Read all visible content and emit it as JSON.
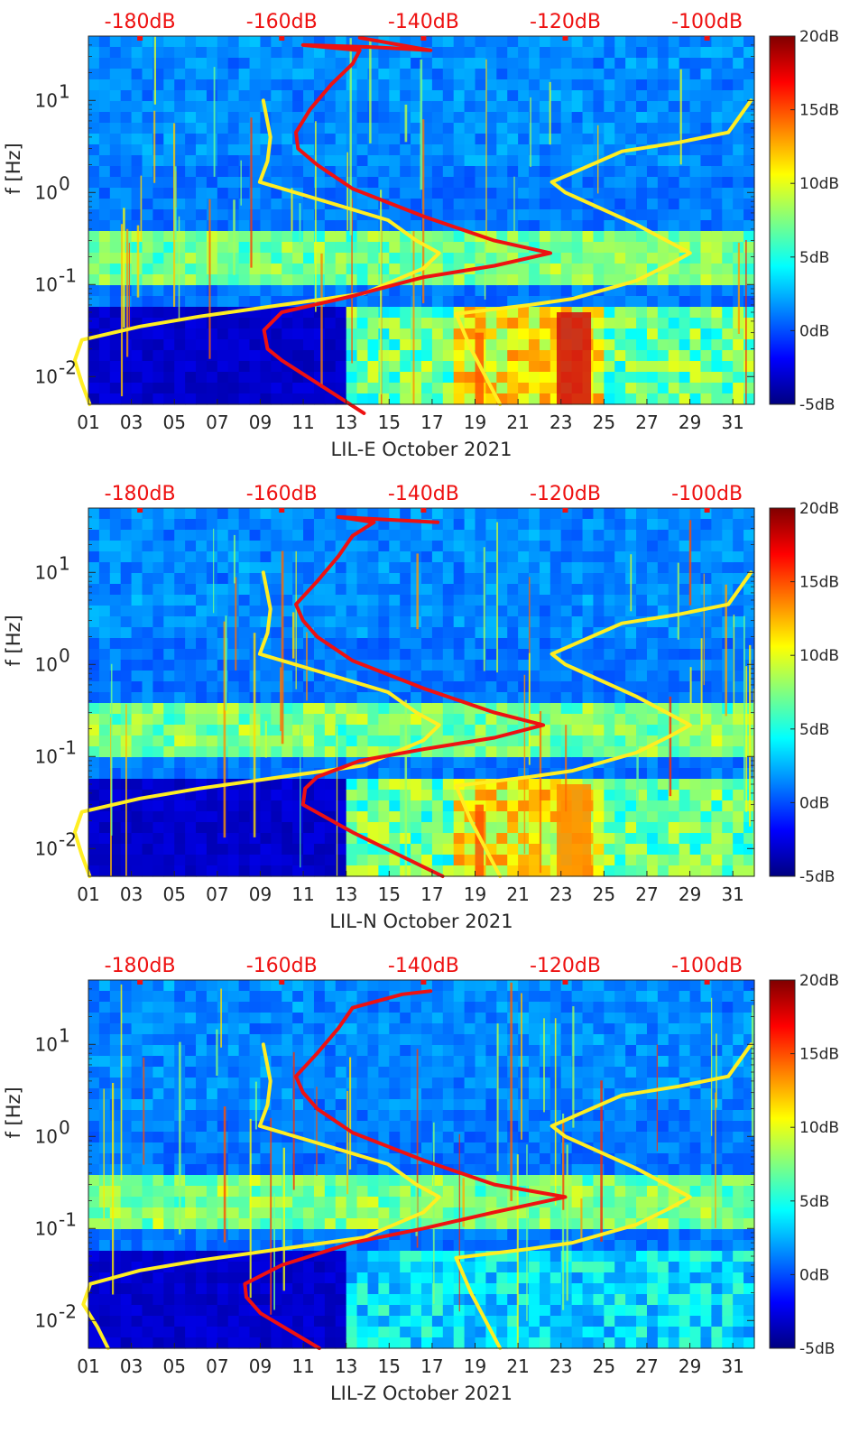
{
  "figure": {
    "description_free": true
  },
  "colors": {
    "ref_curve_yellow": "#ffee22",
    "ref_curve_red": "#ee1111",
    "top_axis_text": "#ee1111",
    "axis_text": "#262626",
    "colormap": [
      "#000080",
      "#0000ff",
      "#0080ff",
      "#00ffff",
      "#80ff80",
      "#ffff00",
      "#ff8000",
      "#ff0000",
      "#800000"
    ]
  },
  "chart_data": [
    {
      "type": "heatmap",
      "title": "",
      "xlabel": "LIL-E October 2021",
      "ylabel": "f [Hz]",
      "x_range_days": [
        1,
        32
      ],
      "x_ticks": [
        "01",
        "03",
        "05",
        "07",
        "09",
        "11",
        "13",
        "15",
        "17",
        "19",
        "21",
        "23",
        "25",
        "27",
        "29",
        "31"
      ],
      "y_scale": "log",
      "y_range_hz": [
        0.005,
        50
      ],
      "y_ticks": [
        "10-2",
        "10-1",
        "100",
        "101"
      ],
      "top_axis_ticks": [
        "-180dB",
        "-160dB",
        "-140dB",
        "-120dB",
        "-100dB"
      ],
      "colorbar": {
        "range_db": [
          -5,
          20
        ],
        "ticks": [
          "20dB",
          "15dB",
          "10dB",
          "5dB",
          "0dB",
          "-5dB"
        ]
      },
      "series": [
        {
          "name": "yellow reference (low)",
          "color": "yellow",
          "points": [
            [
              -187.1,
              0.005
            ],
            [
              -188.2,
              0.0085
            ],
            [
              -189.2,
              0.015
            ],
            [
              -188.2,
              0.025
            ],
            [
              -180,
              0.035
            ],
            [
              -171.6,
              0.045
            ],
            [
              -160,
              0.06
            ],
            [
              -148.4,
              0.08
            ],
            [
              -140,
              0.15
            ],
            [
              -137.8,
              0.22
            ],
            [
              -141,
              0.3
            ],
            [
              -145,
              0.5
            ],
            [
              -155,
              0.85
            ],
            [
              -163.1,
              1.3
            ],
            [
              -162,
              2.2
            ],
            [
              -161.6,
              4.0
            ],
            [
              -162.6,
              10
            ]
          ]
        },
        {
          "name": "yellow reference (high)",
          "color": "yellow",
          "points": [
            [
              -129.2,
              0.005
            ],
            [
              -133.3,
              0.02
            ],
            [
              -135.4,
              0.048
            ],
            [
              -125,
              0.06
            ],
            [
              -119,
              0.07
            ],
            [
              -110,
              0.11
            ],
            [
              -105,
              0.17
            ],
            [
              -102.4,
              0.22
            ],
            [
              -110,
              0.45
            ],
            [
              -120,
              1.0
            ],
            [
              -121.9,
              1.3
            ],
            [
              -112,
              2.8
            ],
            [
              -104,
              3.5
            ],
            [
              -97,
              4.5
            ],
            [
              -93.8,
              10
            ]
          ]
        },
        {
          "name": "red curve (LIL-E)",
          "color": "red",
          "points": [
            [
              -148.4,
              0.004
            ],
            [
              -160,
              0.015
            ],
            [
              -162,
              0.02
            ],
            [
              -162.5,
              0.032
            ],
            [
              -160,
              0.05
            ],
            [
              -150,
              0.075
            ],
            [
              -144,
              0.1
            ],
            [
              -140,
              0.12
            ],
            [
              -130,
              0.16
            ],
            [
              -122.1,
              0.22
            ],
            [
              -130,
              0.3
            ],
            [
              -140,
              0.55
            ],
            [
              -150,
              1.1
            ],
            [
              -155,
              2.0
            ],
            [
              -157.7,
              3.0
            ],
            [
              -158,
              4.5
            ],
            [
              -156,
              8
            ],
            [
              -153,
              15
            ],
            [
              -150,
              25
            ],
            [
              -149,
              35
            ],
            [
              -157,
              40
            ],
            [
              -147,
              38
            ],
            [
              -139,
              35
            ],
            [
              -149,
              48
            ]
          ]
        }
      ]
    },
    {
      "type": "heatmap",
      "title": "",
      "xlabel": "LIL-N October 2021",
      "ylabel": "f [Hz]",
      "x_range_days": [
        1,
        32
      ],
      "x_ticks": [
        "01",
        "03",
        "05",
        "07",
        "09",
        "11",
        "13",
        "15",
        "17",
        "19",
        "21",
        "23",
        "25",
        "27",
        "29",
        "31"
      ],
      "y_scale": "log",
      "y_range_hz": [
        0.005,
        50
      ],
      "y_ticks": [
        "10-2",
        "10-1",
        "100",
        "101"
      ],
      "top_axis_ticks": [
        "-180dB",
        "-160dB",
        "-140dB",
        "-120dB",
        "-100dB"
      ],
      "colorbar": {
        "range_db": [
          -5,
          20
        ],
        "ticks": [
          "20dB",
          "15dB",
          "10dB",
          "5dB",
          "0dB",
          "-5dB"
        ]
      },
      "series": [
        {
          "name": "yellow reference (low)",
          "color": "yellow",
          "points": [
            [
              -187.1,
              0.005
            ],
            [
              -188.2,
              0.0085
            ],
            [
              -189.2,
              0.015
            ],
            [
              -188.2,
              0.025
            ],
            [
              -180,
              0.035
            ],
            [
              -171.6,
              0.045
            ],
            [
              -160,
              0.06
            ],
            [
              -148.4,
              0.08
            ],
            [
              -140,
              0.15
            ],
            [
              -137.8,
              0.22
            ],
            [
              -141,
              0.3
            ],
            [
              -145,
              0.5
            ],
            [
              -155,
              0.85
            ],
            [
              -163.1,
              1.3
            ],
            [
              -162,
              2.2
            ],
            [
              -161.6,
              4.0
            ],
            [
              -162.6,
              10
            ]
          ]
        },
        {
          "name": "yellow reference (high)",
          "color": "yellow",
          "points": [
            [
              -129.2,
              0.005
            ],
            [
              -133.3,
              0.02
            ],
            [
              -135.4,
              0.048
            ],
            [
              -125,
              0.06
            ],
            [
              -119,
              0.07
            ],
            [
              -110,
              0.11
            ],
            [
              -105,
              0.17
            ],
            [
              -102.4,
              0.22
            ],
            [
              -110,
              0.45
            ],
            [
              -120,
              1.0
            ],
            [
              -121.9,
              1.3
            ],
            [
              -112,
              2.8
            ],
            [
              -104,
              3.5
            ],
            [
              -97,
              4.5
            ],
            [
              -93.8,
              10
            ]
          ]
        },
        {
          "name": "red curve (LIL-N)",
          "color": "red",
          "points": [
            [
              -137.3,
              0.005
            ],
            [
              -150,
              0.015
            ],
            [
              -157,
              0.03
            ],
            [
              -156.7,
              0.045
            ],
            [
              -155,
              0.06
            ],
            [
              -149,
              0.09
            ],
            [
              -140,
              0.12
            ],
            [
              -130,
              0.16
            ],
            [
              -123.1,
              0.22
            ],
            [
              -130,
              0.3
            ],
            [
              -140,
              0.55
            ],
            [
              -150,
              1.1
            ],
            [
              -155,
              2.0
            ],
            [
              -157,
              3.0
            ],
            [
              -158,
              4.5
            ],
            [
              -155,
              8
            ],
            [
              -152,
              15
            ],
            [
              -150,
              25
            ],
            [
              -147,
              35
            ],
            [
              -152,
              40
            ],
            [
              -138,
              35
            ]
          ]
        }
      ]
    },
    {
      "type": "heatmap",
      "title": "",
      "xlabel": "LIL-Z October 2021",
      "ylabel": "f [Hz]",
      "x_range_days": [
        1,
        32
      ],
      "x_ticks": [
        "01",
        "03",
        "05",
        "07",
        "09",
        "11",
        "13",
        "15",
        "17",
        "19",
        "21",
        "23",
        "25",
        "27",
        "29",
        "31"
      ],
      "y_scale": "log",
      "y_range_hz": [
        0.005,
        50
      ],
      "y_ticks": [
        "10-2",
        "10-1",
        "100",
        "101"
      ],
      "top_axis_ticks": [
        "-180dB",
        "-160dB",
        "-140dB",
        "-120dB",
        "-100dB"
      ],
      "colorbar": {
        "range_db": [
          -5,
          20
        ],
        "ticks": [
          "20dB",
          "15dB",
          "10dB",
          "5dB",
          "0dB",
          "-5dB"
        ]
      },
      "series": [
        {
          "name": "yellow reference (low)",
          "color": "yellow",
          "points": [
            [
              -184.5,
              0.005
            ],
            [
              -186,
              0.0085
            ],
            [
              -188,
              0.015
            ],
            [
              -187,
              0.025
            ],
            [
              -180,
              0.035
            ],
            [
              -171.6,
              0.045
            ],
            [
              -160,
              0.06
            ],
            [
              -148.4,
              0.08
            ],
            [
              -140,
              0.15
            ],
            [
              -137.8,
              0.22
            ],
            [
              -141,
              0.3
            ],
            [
              -145,
              0.5
            ],
            [
              -155,
              0.85
            ],
            [
              -163.1,
              1.3
            ],
            [
              -162,
              2.2
            ],
            [
              -161.6,
              4.0
            ],
            [
              -162.6,
              10
            ]
          ]
        },
        {
          "name": "yellow reference (high)",
          "color": "yellow",
          "points": [
            [
              -129.2,
              0.005
            ],
            [
              -133.3,
              0.02
            ],
            [
              -135.4,
              0.048
            ],
            [
              -125,
              0.06
            ],
            [
              -119,
              0.07
            ],
            [
              -110,
              0.11
            ],
            [
              -105,
              0.17
            ],
            [
              -102.4,
              0.22
            ],
            [
              -110,
              0.45
            ],
            [
              -120,
              1.0
            ],
            [
              -121.9,
              1.3
            ],
            [
              -112,
              2.8
            ],
            [
              -104,
              3.5
            ],
            [
              -97,
              4.5
            ],
            [
              -93.8,
              10
            ]
          ]
        },
        {
          "name": "red curve (LIL-Z)",
          "color": "red",
          "points": [
            [
              -154.7,
              0.005
            ],
            [
              -163,
              0.012
            ],
            [
              -165,
              0.018
            ],
            [
              -165.2,
              0.025
            ],
            [
              -160,
              0.04
            ],
            [
              -150,
              0.07
            ],
            [
              -140,
              0.1
            ],
            [
              -130,
              0.15
            ],
            [
              -120,
              0.22
            ],
            [
              -130,
              0.3
            ],
            [
              -140,
              0.55
            ],
            [
              -150,
              1.1
            ],
            [
              -155,
              2.0
            ],
            [
              -157,
              3.0
            ],
            [
              -158,
              4.5
            ],
            [
              -155,
              8
            ],
            [
              -152,
              15
            ],
            [
              -150,
              25
            ],
            [
              -143,
              35
            ],
            [
              -139,
              38
            ]
          ]
        }
      ]
    }
  ]
}
